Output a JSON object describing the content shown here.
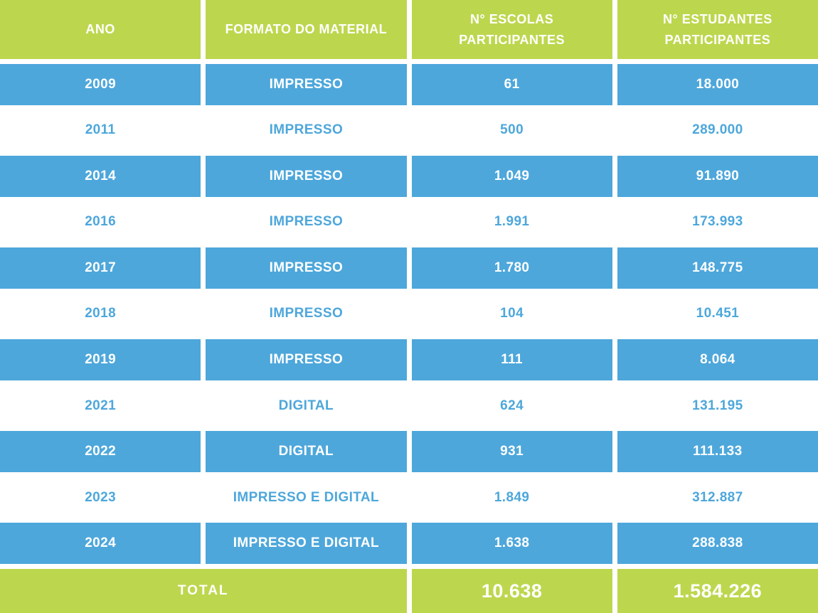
{
  "table": {
    "columns": [
      {
        "label": "ANO"
      },
      {
        "label": "FORMATO DO MATERIAL"
      },
      {
        "label": "N° ESCOLAS\nPARTICIPANTES"
      },
      {
        "label": "N° ESTUDANTES\nPARTICIPANTES"
      }
    ],
    "rows": [
      {
        "ano": "2009",
        "formato": "IMPRESSO",
        "escolas": "61",
        "estudantes": "18.000"
      },
      {
        "ano": "2011",
        "formato": "IMPRESSO",
        "escolas": "500",
        "estudantes": "289.000"
      },
      {
        "ano": "2014",
        "formato": "IMPRESSO",
        "escolas": "1.049",
        "estudantes": "91.890"
      },
      {
        "ano": "2016",
        "formato": "IMPRESSO",
        "escolas": "1.991",
        "estudantes": "173.993"
      },
      {
        "ano": "2017",
        "formato": "IMPRESSO",
        "escolas": "1.780",
        "estudantes": "148.775"
      },
      {
        "ano": "2018",
        "formato": "IMPRESSO",
        "escolas": "104",
        "estudantes": "10.451"
      },
      {
        "ano": "2019",
        "formato": "IMPRESSO",
        "escolas": "111",
        "estudantes": "8.064"
      },
      {
        "ano": "2021",
        "formato": "DIGITAL",
        "escolas": "624",
        "estudantes": "131.195"
      },
      {
        "ano": "2022",
        "formato": "DIGITAL",
        "escolas": "931",
        "estudantes": "111.133"
      },
      {
        "ano": "2023",
        "formato": "IMPRESSO E DIGITAL",
        "escolas": "1.849",
        "estudantes": "312.887"
      },
      {
        "ano": "2024",
        "formato": "IMPRESSO E DIGITAL",
        "escolas": "1.638",
        "estudantes": "288.838"
      }
    ],
    "total": {
      "label": "TOTAL",
      "escolas": "10.638",
      "estudantes": "1.584.226"
    }
  },
  "chart_data": {
    "type": "table",
    "columns": [
      "ANO",
      "FORMATO DO MATERIAL",
      "N° ESCOLAS PARTICIPANTES",
      "N° ESTUDANTES PARTICIPANTES"
    ],
    "rows": [
      [
        "2009",
        "IMPRESSO",
        61,
        18000
      ],
      [
        "2011",
        "IMPRESSO",
        500,
        289000
      ],
      [
        "2014",
        "IMPRESSO",
        1049,
        91890
      ],
      [
        "2016",
        "IMPRESSO",
        1991,
        173993
      ],
      [
        "2017",
        "IMPRESSO",
        1780,
        148775
      ],
      [
        "2018",
        "IMPRESSO",
        104,
        10451
      ],
      [
        "2019",
        "IMPRESSO",
        111,
        8064
      ],
      [
        "2021",
        "DIGITAL",
        624,
        131195
      ],
      [
        "2022",
        "DIGITAL",
        931,
        111133
      ],
      [
        "2023",
        "IMPRESSO E DIGITAL",
        1849,
        312887
      ],
      [
        "2024",
        "IMPRESSO E DIGITAL",
        1638,
        288838
      ]
    ],
    "total": {
      "label": "TOTAL",
      "n_escolas": 10638,
      "n_estudantes": 1584226
    }
  },
  "colors": {
    "header_green": "#bcd74e",
    "row_blue": "#4da7db",
    "text_white": "#ffffff",
    "text_blue_on_white": "#4da7db"
  }
}
